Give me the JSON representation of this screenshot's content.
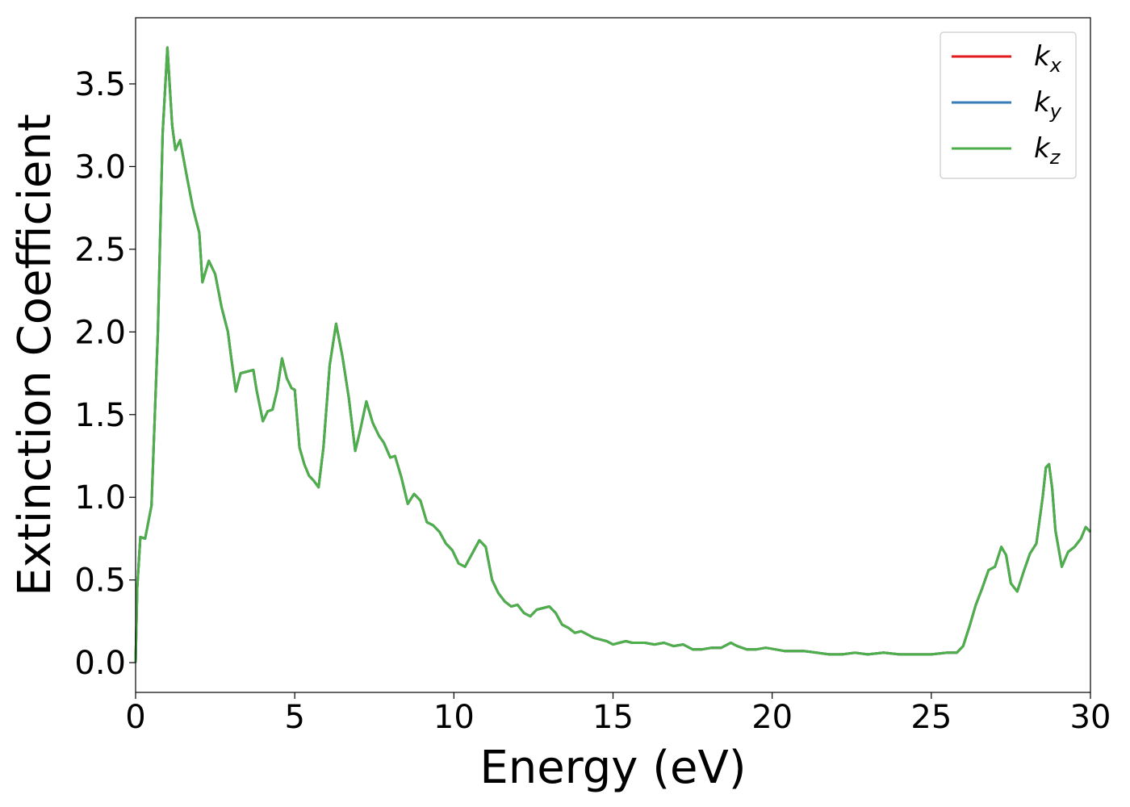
{
  "chart_data": {
    "type": "line",
    "title": "",
    "xlabel": "Energy (eV)",
    "ylabel": "Extinction Coefficient",
    "xlim": [
      0,
      30
    ],
    "ylim": [
      -0.18,
      3.9
    ],
    "xticks": [
      0,
      5,
      10,
      15,
      20,
      25,
      30
    ],
    "xtick_labels": [
      "0",
      "5",
      "10",
      "15",
      "20",
      "25",
      "30"
    ],
    "yticks": [
      0.0,
      0.5,
      1.0,
      1.5,
      2.0,
      2.5,
      3.0,
      3.5
    ],
    "ytick_labels": [
      "0.0",
      "0.5",
      "1.0",
      "1.5",
      "2.0",
      "2.5",
      "3.0",
      "3.5"
    ],
    "grid": false,
    "legend_position": "top-right",
    "series": [
      {
        "name": "k_x",
        "label_base": "k",
        "label_sub": "x",
        "color": "#e41a1c",
        "x": [
          0,
          0.05,
          0.15,
          0.3,
          0.5,
          0.7,
          0.85,
          1.0,
          1.15,
          1.25,
          1.4,
          1.6,
          1.8,
          2.0,
          2.1,
          2.3,
          2.5,
          2.7,
          2.9,
          3.0,
          3.15,
          3.3,
          3.5,
          3.7,
          3.8,
          4.0,
          4.15,
          4.3,
          4.45,
          4.6,
          4.75,
          4.9,
          5.0,
          5.15,
          5.3,
          5.45,
          5.6,
          5.75,
          5.9,
          6.1,
          6.3,
          6.5,
          6.7,
          6.9,
          7.05,
          7.25,
          7.45,
          7.65,
          7.8,
          8.0,
          8.15,
          8.35,
          8.55,
          8.75,
          8.95,
          9.15,
          9.35,
          9.55,
          9.75,
          9.95,
          10.15,
          10.35,
          10.55,
          10.8,
          11.0,
          11.2,
          11.4,
          11.6,
          11.8,
          12.0,
          12.2,
          12.4,
          12.6,
          12.8,
          13.0,
          13.2,
          13.4,
          13.6,
          13.8,
          14.0,
          14.2,
          14.4,
          14.6,
          14.8,
          15.0,
          15.2,
          15.4,
          15.6,
          15.8,
          16.0,
          16.3,
          16.6,
          16.9,
          17.2,
          17.5,
          17.8,
          18.1,
          18.4,
          18.7,
          18.9,
          19.2,
          19.5,
          19.8,
          20.1,
          20.4,
          20.7,
          21.0,
          21.4,
          21.8,
          22.2,
          22.6,
          23.0,
          23.5,
          24.0,
          24.5,
          25.0,
          25.5,
          25.8,
          26.0,
          26.2,
          26.4,
          26.6,
          26.8,
          27.0,
          27.2,
          27.35,
          27.5,
          27.7,
          27.9,
          28.1,
          28.3,
          28.5,
          28.6,
          28.7,
          28.8,
          28.9,
          29.1,
          29.3,
          29.5,
          29.7,
          29.85,
          30.0
        ],
        "y": [
          0.0,
          0.45,
          0.76,
          0.75,
          0.95,
          2.0,
          3.2,
          3.72,
          3.25,
          3.1,
          3.16,
          2.95,
          2.75,
          2.6,
          2.3,
          2.43,
          2.35,
          2.15,
          2.0,
          1.85,
          1.64,
          1.75,
          1.76,
          1.77,
          1.65,
          1.46,
          1.52,
          1.53,
          1.65,
          1.84,
          1.72,
          1.66,
          1.65,
          1.3,
          1.2,
          1.13,
          1.1,
          1.06,
          1.3,
          1.8,
          2.05,
          1.85,
          1.6,
          1.28,
          1.4,
          1.58,
          1.45,
          1.37,
          1.33,
          1.24,
          1.25,
          1.12,
          0.96,
          1.02,
          0.98,
          0.85,
          0.83,
          0.79,
          0.72,
          0.68,
          0.6,
          0.58,
          0.65,
          0.74,
          0.7,
          0.5,
          0.42,
          0.37,
          0.34,
          0.35,
          0.3,
          0.28,
          0.32,
          0.33,
          0.34,
          0.3,
          0.23,
          0.21,
          0.18,
          0.19,
          0.17,
          0.15,
          0.14,
          0.13,
          0.11,
          0.12,
          0.13,
          0.12,
          0.12,
          0.12,
          0.11,
          0.12,
          0.1,
          0.11,
          0.08,
          0.08,
          0.09,
          0.09,
          0.12,
          0.1,
          0.08,
          0.08,
          0.09,
          0.08,
          0.07,
          0.07,
          0.07,
          0.06,
          0.05,
          0.05,
          0.06,
          0.05,
          0.06,
          0.05,
          0.05,
          0.05,
          0.06,
          0.06,
          0.1,
          0.22,
          0.35,
          0.45,
          0.56,
          0.58,
          0.7,
          0.65,
          0.48,
          0.43,
          0.55,
          0.66,
          0.72,
          1.0,
          1.18,
          1.2,
          1.05,
          0.8,
          0.58,
          0.67,
          0.7,
          0.75,
          0.82,
          0.79
        ]
      },
      {
        "name": "k_y",
        "label_base": "k",
        "label_sub": "y",
        "color": "#377eb8",
        "x": [
          0,
          0.05,
          0.15,
          0.3,
          0.5,
          0.7,
          0.85,
          1.0,
          1.15,
          1.25,
          1.4,
          1.6,
          1.8,
          2.0,
          2.1,
          2.3,
          2.5,
          2.7,
          2.9,
          3.0,
          3.15,
          3.3,
          3.5,
          3.7,
          3.8,
          4.0,
          4.15,
          4.3,
          4.45,
          4.6,
          4.75,
          4.9,
          5.0,
          5.15,
          5.3,
          5.45,
          5.6,
          5.75,
          5.9,
          6.1,
          6.3,
          6.5,
          6.7,
          6.9,
          7.05,
          7.25,
          7.45,
          7.65,
          7.8,
          8.0,
          8.15,
          8.35,
          8.55,
          8.75,
          8.95,
          9.15,
          9.35,
          9.55,
          9.75,
          9.95,
          10.15,
          10.35,
          10.55,
          10.8,
          11.0,
          11.2,
          11.4,
          11.6,
          11.8,
          12.0,
          12.2,
          12.4,
          12.6,
          12.8,
          13.0,
          13.2,
          13.4,
          13.6,
          13.8,
          14.0,
          14.2,
          14.4,
          14.6,
          14.8,
          15.0,
          15.2,
          15.4,
          15.6,
          15.8,
          16.0,
          16.3,
          16.6,
          16.9,
          17.2,
          17.5,
          17.8,
          18.1,
          18.4,
          18.7,
          18.9,
          19.2,
          19.5,
          19.8,
          20.1,
          20.4,
          20.7,
          21.0,
          21.4,
          21.8,
          22.2,
          22.6,
          23.0,
          23.5,
          24.0,
          24.5,
          25.0,
          25.5,
          25.8,
          26.0,
          26.2,
          26.4,
          26.6,
          26.8,
          27.0,
          27.2,
          27.35,
          27.5,
          27.7,
          27.9,
          28.1,
          28.3,
          28.5,
          28.6,
          28.7,
          28.8,
          28.9,
          29.1,
          29.3,
          29.5,
          29.7,
          29.85,
          30.0
        ],
        "y": [
          0.0,
          0.45,
          0.76,
          0.75,
          0.95,
          2.0,
          3.2,
          3.72,
          3.25,
          3.1,
          3.16,
          2.95,
          2.75,
          2.6,
          2.3,
          2.43,
          2.35,
          2.15,
          2.0,
          1.85,
          1.64,
          1.75,
          1.76,
          1.77,
          1.65,
          1.46,
          1.52,
          1.53,
          1.65,
          1.84,
          1.72,
          1.66,
          1.65,
          1.3,
          1.2,
          1.13,
          1.1,
          1.06,
          1.3,
          1.8,
          2.05,
          1.85,
          1.6,
          1.28,
          1.4,
          1.58,
          1.45,
          1.37,
          1.33,
          1.24,
          1.25,
          1.12,
          0.96,
          1.02,
          0.98,
          0.85,
          0.83,
          0.79,
          0.72,
          0.68,
          0.6,
          0.58,
          0.65,
          0.74,
          0.7,
          0.5,
          0.42,
          0.37,
          0.34,
          0.35,
          0.3,
          0.28,
          0.32,
          0.33,
          0.34,
          0.3,
          0.23,
          0.21,
          0.18,
          0.19,
          0.17,
          0.15,
          0.14,
          0.13,
          0.11,
          0.12,
          0.13,
          0.12,
          0.12,
          0.12,
          0.11,
          0.12,
          0.1,
          0.11,
          0.08,
          0.08,
          0.09,
          0.09,
          0.12,
          0.1,
          0.08,
          0.08,
          0.09,
          0.08,
          0.07,
          0.07,
          0.07,
          0.06,
          0.05,
          0.05,
          0.06,
          0.05,
          0.06,
          0.05,
          0.05,
          0.05,
          0.06,
          0.06,
          0.1,
          0.22,
          0.35,
          0.45,
          0.56,
          0.58,
          0.7,
          0.65,
          0.48,
          0.43,
          0.55,
          0.66,
          0.72,
          1.0,
          1.18,
          1.2,
          1.05,
          0.8,
          0.58,
          0.67,
          0.7,
          0.75,
          0.82,
          0.79
        ]
      },
      {
        "name": "k_z",
        "label_base": "k",
        "label_sub": "z",
        "color": "#4daf4a",
        "x": [
          0,
          0.05,
          0.15,
          0.3,
          0.5,
          0.7,
          0.85,
          1.0,
          1.15,
          1.25,
          1.4,
          1.6,
          1.8,
          2.0,
          2.1,
          2.3,
          2.5,
          2.7,
          2.9,
          3.0,
          3.15,
          3.3,
          3.5,
          3.7,
          3.8,
          4.0,
          4.15,
          4.3,
          4.45,
          4.6,
          4.75,
          4.9,
          5.0,
          5.15,
          5.3,
          5.45,
          5.6,
          5.75,
          5.9,
          6.1,
          6.3,
          6.5,
          6.7,
          6.9,
          7.05,
          7.25,
          7.45,
          7.65,
          7.8,
          8.0,
          8.15,
          8.35,
          8.55,
          8.75,
          8.95,
          9.15,
          9.35,
          9.55,
          9.75,
          9.95,
          10.15,
          10.35,
          10.55,
          10.8,
          11.0,
          11.2,
          11.4,
          11.6,
          11.8,
          12.0,
          12.2,
          12.4,
          12.6,
          12.8,
          13.0,
          13.2,
          13.4,
          13.6,
          13.8,
          14.0,
          14.2,
          14.4,
          14.6,
          14.8,
          15.0,
          15.2,
          15.4,
          15.6,
          15.8,
          16.0,
          16.3,
          16.6,
          16.9,
          17.2,
          17.5,
          17.8,
          18.1,
          18.4,
          18.7,
          18.9,
          19.2,
          19.5,
          19.8,
          20.1,
          20.4,
          20.7,
          21.0,
          21.4,
          21.8,
          22.2,
          22.6,
          23.0,
          23.5,
          24.0,
          24.5,
          25.0,
          25.5,
          25.8,
          26.0,
          26.2,
          26.4,
          26.6,
          26.8,
          27.0,
          27.2,
          27.35,
          27.5,
          27.7,
          27.9,
          28.1,
          28.3,
          28.5,
          28.6,
          28.7,
          28.8,
          28.9,
          29.1,
          29.3,
          29.5,
          29.7,
          29.85,
          30.0
        ],
        "y": [
          0.0,
          0.45,
          0.76,
          0.75,
          0.95,
          2.0,
          3.2,
          3.72,
          3.25,
          3.1,
          3.16,
          2.95,
          2.75,
          2.6,
          2.3,
          2.43,
          2.35,
          2.15,
          2.0,
          1.85,
          1.64,
          1.75,
          1.76,
          1.77,
          1.65,
          1.46,
          1.52,
          1.53,
          1.65,
          1.84,
          1.72,
          1.66,
          1.65,
          1.3,
          1.2,
          1.13,
          1.1,
          1.06,
          1.3,
          1.8,
          2.05,
          1.85,
          1.6,
          1.28,
          1.4,
          1.58,
          1.45,
          1.37,
          1.33,
          1.24,
          1.25,
          1.12,
          0.96,
          1.02,
          0.98,
          0.85,
          0.83,
          0.79,
          0.72,
          0.68,
          0.6,
          0.58,
          0.65,
          0.74,
          0.7,
          0.5,
          0.42,
          0.37,
          0.34,
          0.35,
          0.3,
          0.28,
          0.32,
          0.33,
          0.34,
          0.3,
          0.23,
          0.21,
          0.18,
          0.19,
          0.17,
          0.15,
          0.14,
          0.13,
          0.11,
          0.12,
          0.13,
          0.12,
          0.12,
          0.12,
          0.11,
          0.12,
          0.1,
          0.11,
          0.08,
          0.08,
          0.09,
          0.09,
          0.12,
          0.1,
          0.08,
          0.08,
          0.09,
          0.08,
          0.07,
          0.07,
          0.07,
          0.06,
          0.05,
          0.05,
          0.06,
          0.05,
          0.06,
          0.05,
          0.05,
          0.05,
          0.06,
          0.06,
          0.1,
          0.22,
          0.35,
          0.45,
          0.56,
          0.58,
          0.7,
          0.65,
          0.48,
          0.43,
          0.55,
          0.66,
          0.72,
          1.0,
          1.18,
          1.2,
          1.05,
          0.8,
          0.58,
          0.67,
          0.7,
          0.75,
          0.82,
          0.79
        ]
      }
    ]
  }
}
